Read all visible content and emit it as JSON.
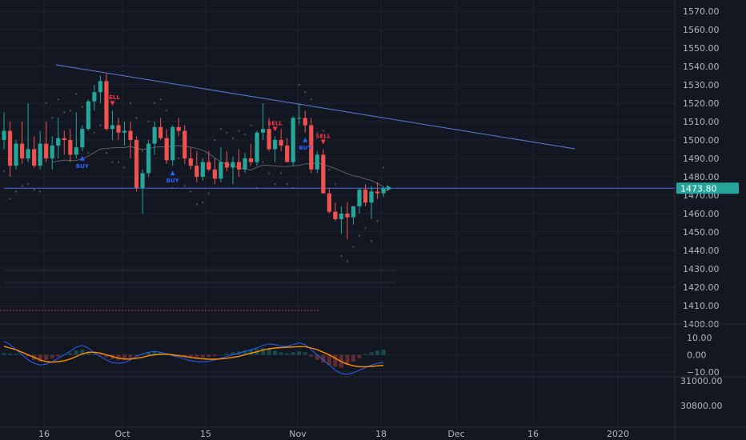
{
  "colors": {
    "background": "#131722",
    "grid": "#1e2230",
    "up": "#26a69a",
    "down": "#ef5350",
    "trendline": "#5b7fd6",
    "support": "#4a6fd8",
    "ma": "#5d606b",
    "dots": "#4c4f58",
    "macd": "#2962ff",
    "signal": "#ff8f00",
    "label_bg": "#26a69a",
    "axis_text": "#b2b5be",
    "buy": "#2962ff",
    "sell": "#f23645"
  },
  "chart_data": [
    {
      "type": "candlestick",
      "ylim": [
        1393,
        1575
      ],
      "price_ticks": [
        1570,
        1560,
        1550,
        1540,
        1530,
        1520,
        1510,
        1500,
        1490,
        1480,
        1470,
        1460,
        1450,
        1440,
        1430,
        1420,
        1410,
        1400
      ],
      "price_tick_labels": [
        "1570.00",
        "1560.00",
        "1550.00",
        "1540.00",
        "1530.00",
        "1520.00",
        "1510.00",
        "1500.00",
        "1490.00",
        "1480.00",
        "1470.00",
        "1460.00",
        "1450.00",
        "1440.00",
        "1430.00",
        "1420.00",
        "1410.00",
        "1400.00"
      ],
      "x_ticks": [
        "16",
        "Oct",
        "15",
        "Nov",
        "18",
        "Dec",
        "16",
        "2020"
      ],
      "last_price": 1473.8,
      "last_price_label": "1473.80",
      "candles_ohlc": [
        [
          1500,
          1515,
          1495,
          1505
        ],
        [
          1505,
          1510,
          1480,
          1486
        ],
        [
          1486,
          1500,
          1484,
          1498
        ],
        [
          1498,
          1510,
          1487,
          1490
        ],
        [
          1490,
          1520,
          1488,
          1495
        ],
        [
          1495,
          1502,
          1485,
          1486
        ],
        [
          1486,
          1505,
          1484,
          1498
        ],
        [
          1498,
          1510,
          1488,
          1490
        ],
        [
          1490,
          1502,
          1484,
          1497
        ],
        [
          1497,
          1512,
          1490,
          1501
        ],
        [
          1501,
          1505,
          1492,
          1500
        ],
        [
          1500,
          1506,
          1488,
          1492
        ],
        [
          1492,
          1515,
          1490,
          1496
        ],
        [
          1496,
          1508,
          1494,
          1506
        ],
        [
          1506,
          1522,
          1505,
          1521
        ],
        [
          1521,
          1530,
          1516,
          1526
        ],
        [
          1526,
          1535,
          1520,
          1532
        ],
        [
          1532,
          1536,
          1505,
          1506
        ],
        [
          1506,
          1516,
          1500,
          1508
        ],
        [
          1508,
          1512,
          1500,
          1504
        ],
        [
          1504,
          1510,
          1497,
          1505
        ],
        [
          1505,
          1510,
          1490,
          1500
        ],
        [
          1500,
          1502,
          1472,
          1474
        ],
        [
          1474,
          1484,
          1460,
          1482
        ],
        [
          1482,
          1500,
          1480,
          1498
        ],
        [
          1498,
          1510,
          1492,
          1507
        ],
        [
          1507,
          1512,
          1500,
          1501
        ],
        [
          1501,
          1506,
          1487,
          1489
        ],
        [
          1489,
          1508,
          1486,
          1507
        ],
        [
          1507,
          1512,
          1502,
          1505
        ],
        [
          1505,
          1508,
          1487,
          1490
        ],
        [
          1490,
          1496,
          1484,
          1486
        ],
        [
          1486,
          1494,
          1477,
          1480
        ],
        [
          1480,
          1490,
          1478,
          1488
        ],
        [
          1488,
          1494,
          1483,
          1484
        ],
        [
          1484,
          1490,
          1476,
          1479
        ],
        [
          1479,
          1496,
          1477,
          1488
        ],
        [
          1488,
          1494,
          1483,
          1485
        ],
        [
          1485,
          1491,
          1476,
          1488
        ],
        [
          1488,
          1495,
          1480,
          1484
        ],
        [
          1484,
          1493,
          1482,
          1490
        ],
        [
          1490,
          1498,
          1486,
          1488
        ],
        [
          1488,
          1505,
          1486,
          1504
        ],
        [
          1504,
          1520,
          1500,
          1506
        ],
        [
          1506,
          1512,
          1494,
          1495
        ],
        [
          1495,
          1502,
          1488,
          1500
        ],
        [
          1500,
          1506,
          1494,
          1497
        ],
        [
          1497,
          1501,
          1488,
          1488
        ],
        [
          1488,
          1513,
          1486,
          1512
        ],
        [
          1512,
          1520,
          1508,
          1512
        ],
        [
          1512,
          1516,
          1504,
          1508
        ],
        [
          1508,
          1512,
          1482,
          1484
        ],
        [
          1484,
          1494,
          1482,
          1492
        ],
        [
          1492,
          1495,
          1480,
          1471
        ],
        [
          1471,
          1474,
          1460,
          1461
        ],
        [
          1461,
          1466,
          1456,
          1457
        ],
        [
          1457,
          1464,
          1449,
          1460
        ],
        [
          1460,
          1466,
          1446,
          1458
        ],
        [
          1458,
          1464,
          1454,
          1464
        ],
        [
          1464,
          1474,
          1460,
          1473
        ],
        [
          1473,
          1476,
          1464,
          1466
        ],
        [
          1466,
          1475,
          1457,
          1472
        ],
        [
          1472,
          1477,
          1468,
          1471
        ],
        [
          1471,
          1475,
          1469,
          1474
        ]
      ],
      "signals": [
        {
          "label": "BUY",
          "index": 13,
          "side": "buy"
        },
        {
          "label": "SELL",
          "index": 18,
          "side": "sell"
        },
        {
          "label": "BUY",
          "index": 28,
          "side": "buy"
        },
        {
          "label": "SELL",
          "index": 45,
          "side": "sell"
        },
        {
          "label": "BUY",
          "index": 50,
          "side": "buy"
        },
        {
          "label": "SELL",
          "index": 53,
          "side": "sell"
        }
      ]
    },
    {
      "type": "line",
      "ylim": [
        -15,
        15
      ],
      "ticks": [
        10,
        0,
        -10
      ],
      "tick_labels": [
        "10.00",
        "0.00",
        "−10.00"
      ],
      "macd": [
        8,
        6,
        3,
        0,
        -3,
        -5,
        -6,
        -5.5,
        -4,
        -2,
        0,
        2,
        4.5,
        5.5,
        4,
        1,
        -1,
        -3,
        -4.5,
        -5,
        -4.5,
        -3,
        -1,
        0.5,
        1.5,
        2,
        1.5,
        0.5,
        -0.5,
        -1.5,
        -2.5,
        -3.5,
        -4,
        -4.2,
        -3.8,
        -3,
        -2,
        -1,
        0,
        1,
        2,
        3,
        4,
        5.5,
        6.5,
        6,
        5,
        5,
        6,
        7,
        6,
        3,
        0,
        -3,
        -6,
        -9,
        -11,
        -11.5,
        -10.5,
        -9,
        -7.5,
        -6,
        -5,
        -4.5
      ],
      "signal": [
        5,
        4,
        3,
        1.5,
        0,
        -1.5,
        -3,
        -4,
        -4.3,
        -4,
        -3.5,
        -2.5,
        -1,
        0.5,
        1.5,
        1.5,
        1,
        0,
        -1,
        -2,
        -2.5,
        -2.5,
        -2,
        -1.5,
        -0.5,
        0,
        0.3,
        0.3,
        0,
        -0.5,
        -1,
        -1.5,
        -2,
        -2.4,
        -2.6,
        -2.6,
        -2.4,
        -2,
        -1.5,
        -1,
        0,
        1,
        1.8,
        2.8,
        3.5,
        4,
        4.2,
        4.4,
        4.6,
        4.8,
        4.8,
        4,
        3,
        1.5,
        0,
        -2,
        -4,
        -5.5,
        -6.5,
        -7,
        -7,
        -6.8,
        -6.5,
        -6.2
      ],
      "histogram": [
        1,
        0.8,
        0.5,
        0,
        -1,
        -3,
        -4,
        -3,
        -2,
        -1,
        0,
        1,
        2.5,
        3,
        2,
        0.5,
        -0.5,
        -1.5,
        -2.5,
        -3,
        -3,
        -2,
        -1,
        0.5,
        1.5,
        2,
        1.5,
        1,
        -0.5,
        -1,
        -1.5,
        -2,
        -2,
        -1.8,
        -1.2,
        -0.8,
        0.2,
        0.8,
        1.5,
        2,
        2.5,
        3,
        3.5,
        4,
        3.5,
        2.5,
        1.5,
        1,
        1.5,
        2,
        1.5,
        -1,
        -3,
        -4.5,
        -6,
        -7,
        -7.5,
        -6,
        -4,
        -2,
        0.5,
        1.5,
        2.5,
        3
      ]
    },
    {
      "type": "line",
      "ticks": [
        31000,
        30800
      ],
      "tick_labels": [
        "31000.00",
        "30800.00"
      ]
    }
  ]
}
